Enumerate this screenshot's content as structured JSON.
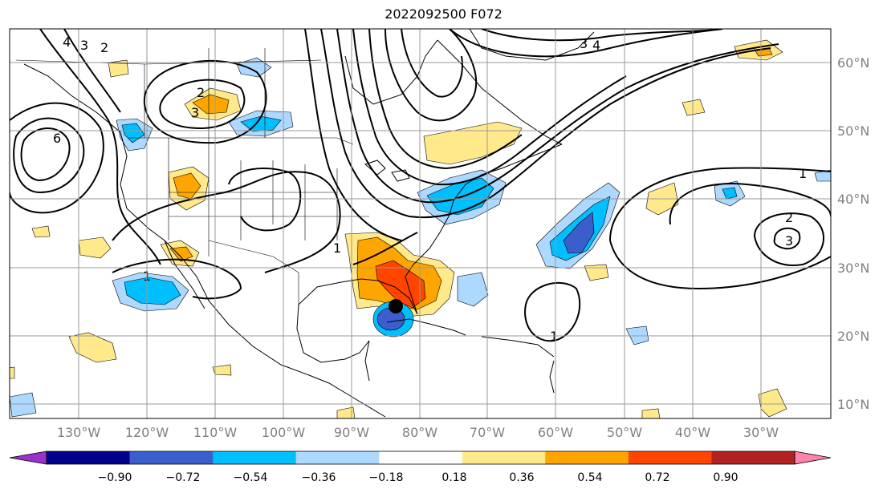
{
  "title": "2022092500 F072",
  "map": {
    "lon_labels": [
      "130°W",
      "120°W",
      "110°W",
      "100°W",
      "90°W",
      "80°W",
      "70°W",
      "60°W",
      "50°W",
      "40°W",
      "30°W"
    ],
    "lat_labels": [
      "60°N",
      "50°N",
      "40°N",
      "30°N",
      "20°N",
      "10°N"
    ],
    "contour_labels": [
      "4",
      "3",
      "2",
      "2",
      "3",
      "6",
      "1",
      "1",
      "1",
      "1",
      "2",
      "3",
      "3",
      "4"
    ],
    "storm_marker": "storm-center"
  },
  "colorbar": {
    "colors": [
      "#9932cc",
      "#00008b",
      "#3a5fcd",
      "#00bfff",
      "#add8ff",
      "#ffffff",
      "#ffe98a",
      "#ffa500",
      "#ff4500",
      "#b22222",
      "#ff82ab"
    ],
    "ticks": [
      "−0.90",
      "−0.72",
      "−0.54",
      "−0.36",
      "−0.18",
      "0.18",
      "0.36",
      "0.54",
      "0.72",
      "0.90"
    ]
  }
}
